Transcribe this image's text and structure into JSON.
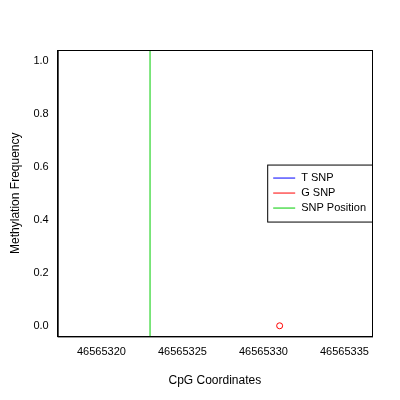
{
  "chart_data": {
    "type": "scatter",
    "x_label": "CpG Coordinates",
    "y_label": "Methylation Frequency",
    "xlim": [
      46565317.3,
      46565336.7
    ],
    "xticks": [
      46565320,
      46565325,
      46565330,
      46565335
    ],
    "ylim": [
      -0.04,
      1.04
    ],
    "yticks": [
      {
        "value": 0,
        "label": "0.0"
      },
      0.2,
      0.4,
      0.6,
      0.8,
      {
        "value": 1,
        "label": "1.0"
      }
    ],
    "grid": false,
    "legend": "right",
    "series": [
      {
        "name": "T SNP",
        "color": "#0000ff",
        "marker": "circle",
        "x": [],
        "values": []
      },
      {
        "name": "G SNP",
        "color": "#ff0000",
        "marker": "circle",
        "x": [
          46565331
        ],
        "values": [
          0
        ]
      },
      {
        "name": "SNP Position",
        "color": "#00cc00",
        "type": "line",
        "line_style": "solid",
        "x": [
          46565323,
          46565323
        ],
        "values": [
          -0.04,
          1.04
        ]
      }
    ]
  }
}
